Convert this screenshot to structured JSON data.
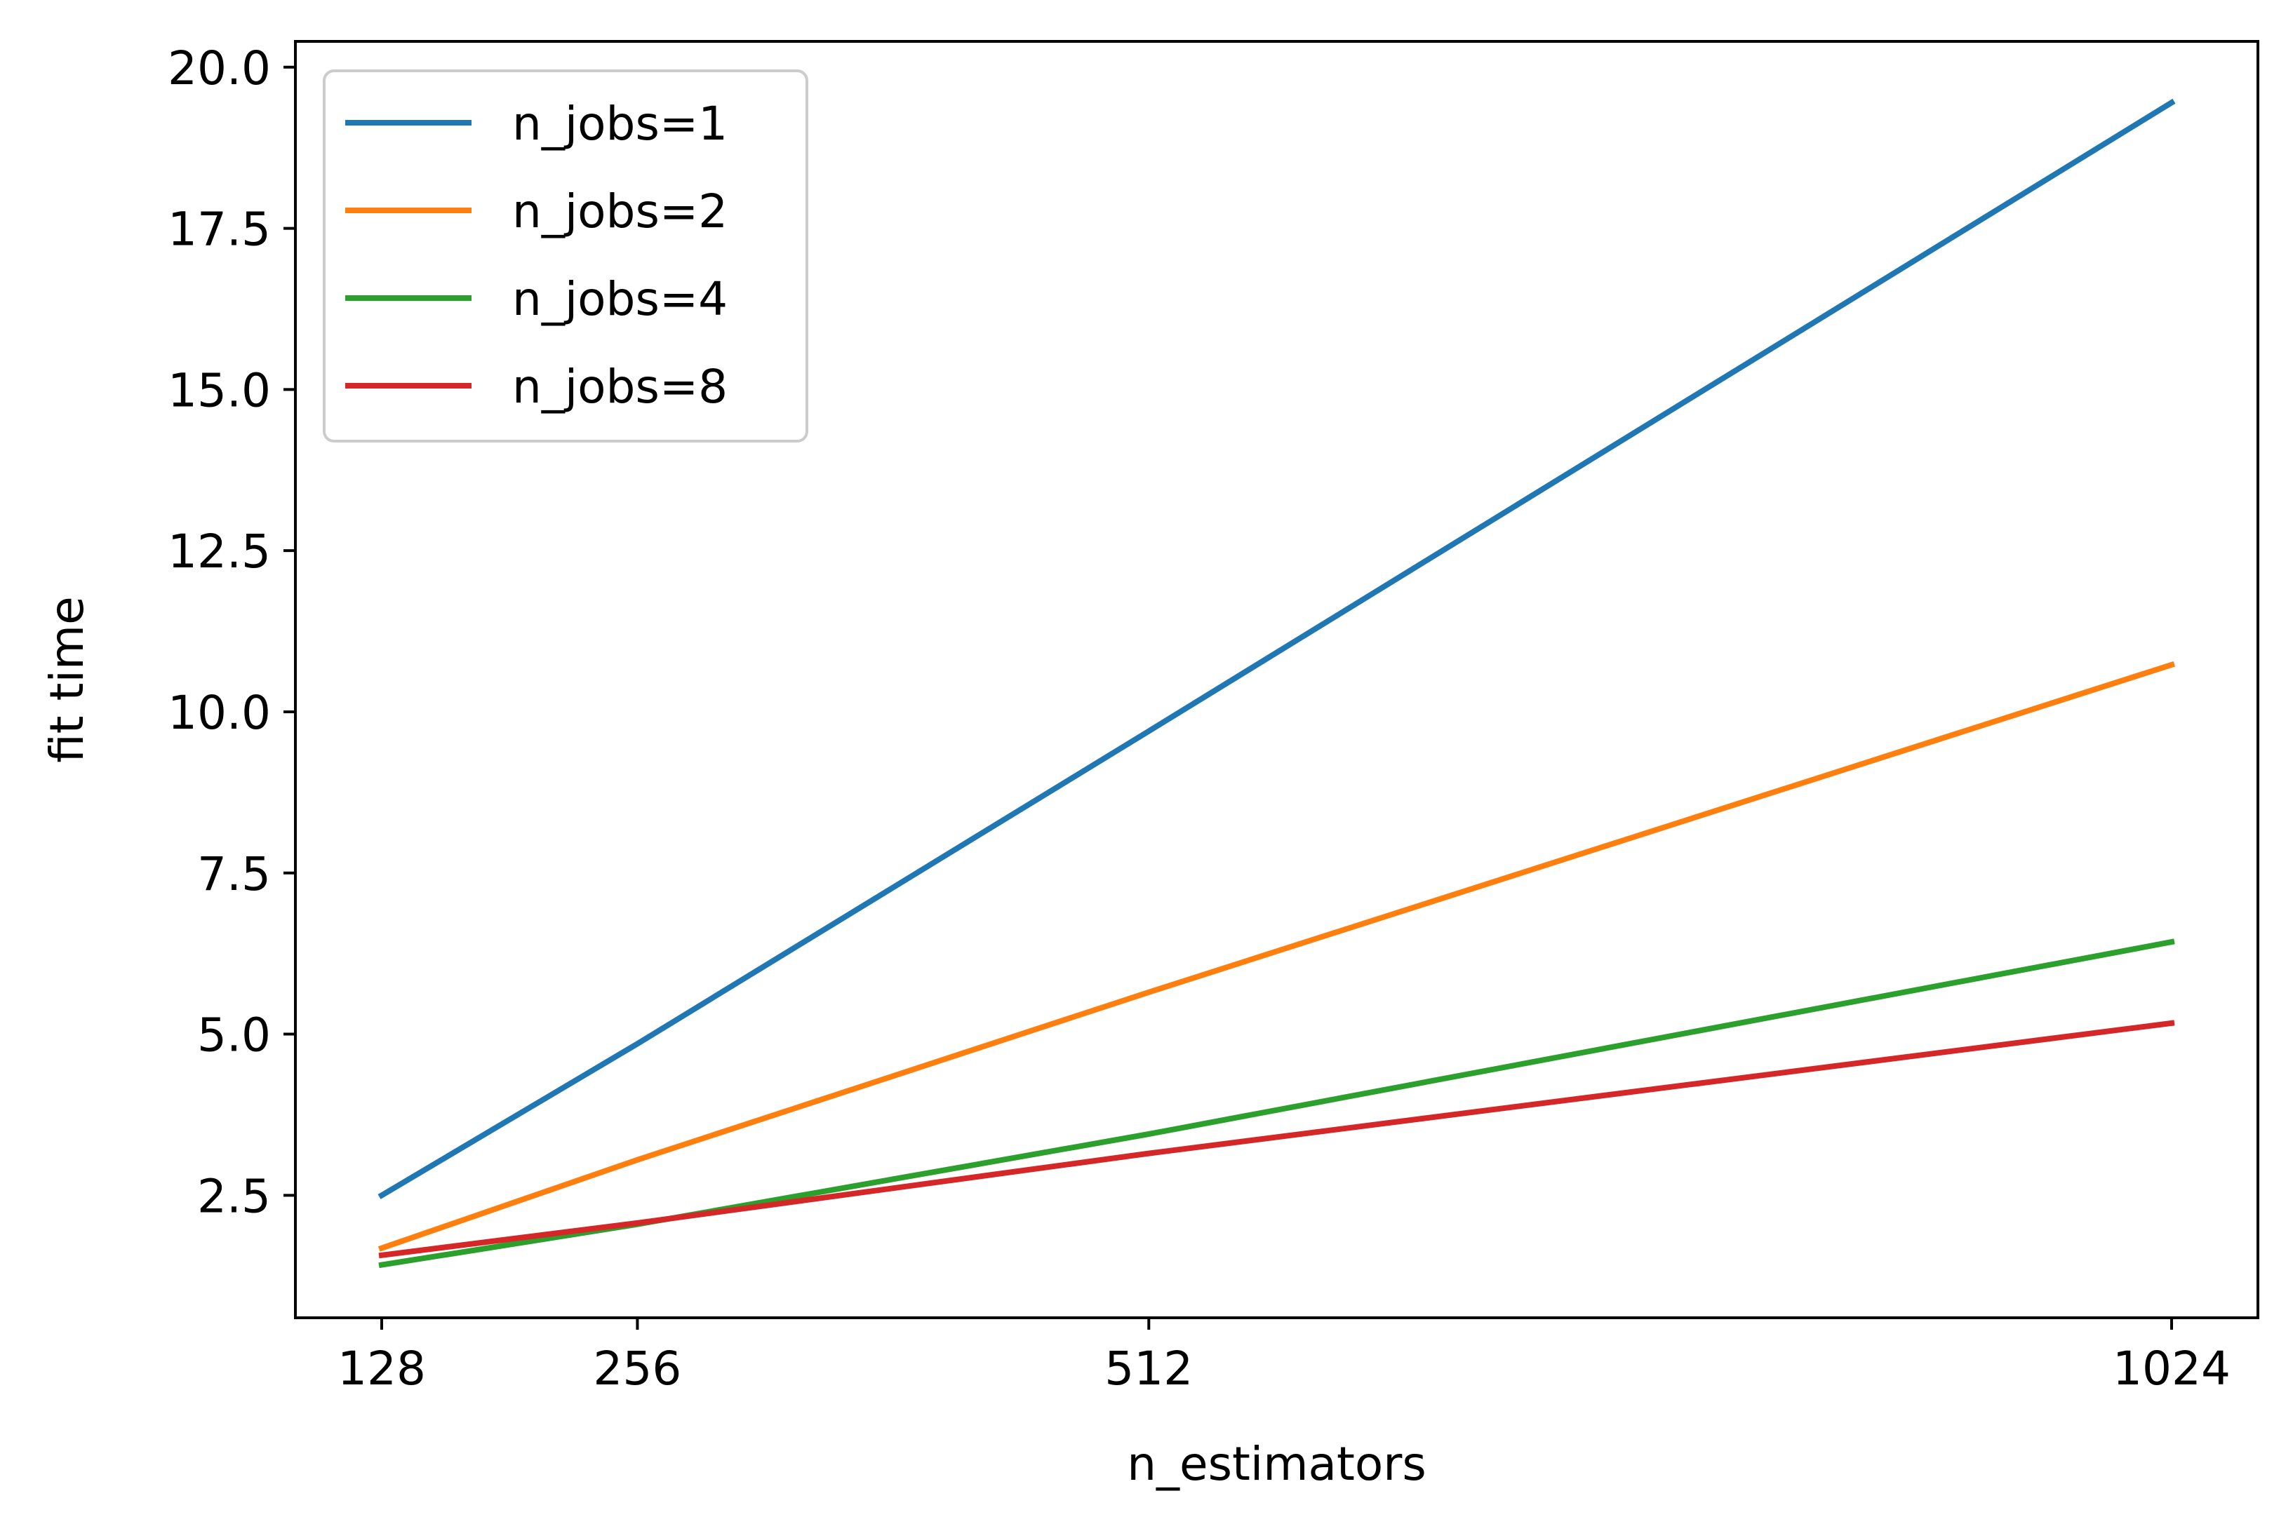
{
  "chart_data": {
    "type": "line",
    "title": "",
    "xlabel": "n_estimators",
    "ylabel": "fit time",
    "x": [
      128,
      256,
      512,
      1024
    ],
    "xticks": [
      "128",
      "256",
      "512",
      "1024"
    ],
    "yticks": [
      "2.5",
      "5.0",
      "7.5",
      "10.0",
      "12.5",
      "15.0",
      "17.5",
      "20.0"
    ],
    "xlim": [
      84.8,
      1067.2
    ],
    "ylim": [
      0.6,
      20.4
    ],
    "grid": false,
    "legend_position": "upper-left",
    "series": [
      {
        "name": "n_jobs=1",
        "color": "#1f77b4",
        "values": [
          2.5,
          4.85,
          9.7,
          19.45
        ]
      },
      {
        "name": "n_jobs=2",
        "color": "#ff7f0e",
        "values": [
          1.68,
          3.05,
          5.65,
          10.73
        ]
      },
      {
        "name": "n_jobs=4",
        "color": "#2ca02c",
        "values": [
          1.42,
          2.05,
          3.45,
          6.43
        ]
      },
      {
        "name": "n_jobs=8",
        "color": "#d62728",
        "values": [
          1.57,
          2.07,
          3.15,
          5.17
        ]
      }
    ]
  }
}
